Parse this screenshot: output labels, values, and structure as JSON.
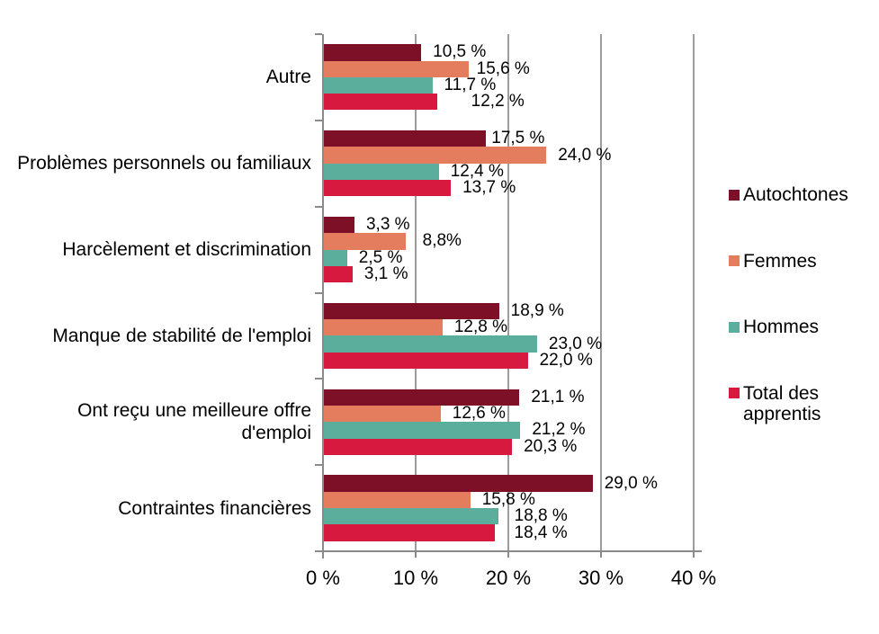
{
  "chart_data": {
    "type": "bar",
    "orientation": "horizontal",
    "title": "",
    "xlabel": "",
    "ylabel": "",
    "categories": [
      "Autre",
      "Problèmes personnels ou familiaux",
      "Harcèlement et discrimination",
      "Manque de stabilité de l'emploi",
      "Ont reçu une meilleure offre\nd'emploi",
      "Contraintes financières"
    ],
    "series": [
      {
        "name": "Autochtones",
        "legend_label": "Autochtones",
        "color": "#7D1027",
        "values": [
          10.5,
          17.5,
          3.3,
          18.9,
          21.1,
          29.0
        ],
        "labels": [
          "10,5 %",
          "17,5 %",
          "3,3 %",
          "18,9 %",
          "21,1 %",
          "29,0 %"
        ]
      },
      {
        "name": "Femmes",
        "legend_label": "Femmes",
        "color": "#E47C5E",
        "values": [
          15.6,
          24.0,
          8.8,
          12.8,
          12.6,
          15.8
        ],
        "labels": [
          "15,6 %",
          "24,0 %",
          "8,8%",
          "12,8 %",
          "12,6 %",
          "15,8 %"
        ]
      },
      {
        "name": "Hommes",
        "legend_label": "Hommes",
        "color": "#5BAE9C",
        "values": [
          11.7,
          12.4,
          2.5,
          23.0,
          21.2,
          18.8
        ],
        "labels": [
          "11,7 %",
          "12,4 %",
          "2,5 %",
          "23,0 %",
          "21,2 %",
          "18,8 %"
        ]
      },
      {
        "name": "Total des apprentis",
        "legend_label": "Total des\napprentis",
        "color": "#D8193F",
        "values": [
          12.2,
          13.7,
          3.1,
          22.0,
          20.3,
          18.4
        ],
        "labels": [
          "12,2 %",
          "13,7 %",
          "3,1 %",
          "22,0 %",
          "20,3 %",
          "18,4 %"
        ]
      }
    ],
    "x_axis": {
      "tick_labels": [
        "0 %",
        "10 %",
        "20 %",
        "30 %",
        "40 %"
      ],
      "tick_values": [
        0,
        10,
        20,
        30,
        40
      ],
      "min": 0,
      "max": 40
    },
    "legend": {
      "position": "right"
    },
    "grid": true,
    "label_dx_default": 13,
    "label_dx_overrides": {
      "0-1": 6,
      "1-0": 9,
      "1-2": 19,
      "3-0": 38,
      "2-5": 18,
      "3-5": 22
    }
  },
  "colors": {
    "background": "#FFFFFF",
    "axis": "#8A8A8A",
    "gridline": "#9C9C9C",
    "text": "#000000"
  }
}
